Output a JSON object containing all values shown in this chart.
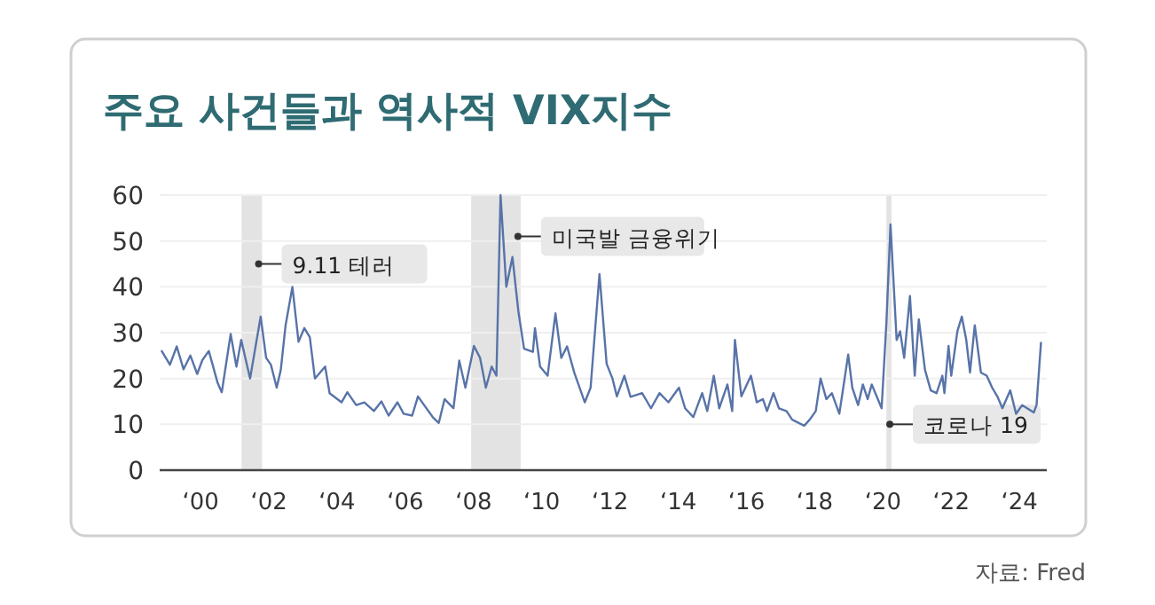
{
  "chart_data": {
    "type": "line",
    "title": "주요 사건들과 역사적 VIX지수",
    "series": [
      {
        "color": "#5873a8",
        "x": [
          -1.14,
          -0.9,
          -0.7,
          -0.5,
          -0.3,
          -0.1,
          0.05,
          0.24,
          0.5,
          0.62,
          0.88,
          1.05,
          1.19,
          1.45,
          1.76,
          1.92,
          2.06,
          2.23,
          2.35,
          2.49,
          2.69,
          2.87,
          3.04,
          3.2,
          3.35,
          3.65,
          3.78,
          4.13,
          4.3,
          4.56,
          4.8,
          5.08,
          5.3,
          5.51,
          5.77,
          5.95,
          6.2,
          6.37,
          6.55,
          6.8,
          6.98,
          7.15,
          7.41,
          7.58,
          7.76,
          8.01,
          8.19,
          8.36,
          8.53,
          8.67,
          8.79,
          8.96,
          9.14,
          9.31,
          9.48,
          9.74,
          9.8,
          9.95,
          10.17,
          10.4,
          10.57,
          10.74,
          10.95,
          11.26,
          11.43,
          11.69,
          11.9,
          12.07,
          12.2,
          12.42,
          12.6,
          12.94,
          13.2,
          13.45,
          13.71,
          14.02,
          14.2,
          14.44,
          14.7,
          14.85,
          15.04,
          15.2,
          15.44,
          15.58,
          15.66,
          15.85,
          16.13,
          16.3,
          16.48,
          16.6,
          16.79,
          16.95,
          17.17,
          17.34,
          17.69,
          17.85,
          18.03,
          18.17,
          18.34,
          18.5,
          18.72,
          18.98,
          19.1,
          19.27,
          19.41,
          19.55,
          19.67,
          19.96,
          20.1,
          20.22,
          20.4,
          20.5,
          20.62,
          20.79,
          20.93,
          21.05,
          21.23,
          21.4,
          21.57,
          21.74,
          21.8,
          21.92,
          22.0,
          22.18,
          22.31,
          22.44,
          22.55,
          22.69,
          22.87,
          23.04,
          23.2,
          23.35,
          23.5,
          23.73,
          23.9,
          24.08,
          24.42,
          24.5,
          24.63
        ],
        "values": [
          26,
          23,
          27,
          22,
          25,
          21,
          24,
          26,
          19,
          17,
          29.7,
          22.6,
          28.4,
          20,
          33.5,
          24.5,
          23,
          18,
          21.9,
          31.6,
          40,
          28,
          31,
          29,
          20,
          22.6,
          16.8,
          14.8,
          17,
          14.2,
          14.8,
          12.9,
          15,
          11.9,
          14.8,
          12.3,
          11.9,
          16.1,
          14.2,
          11.6,
          10.3,
          15.5,
          13.5,
          23.9,
          18,
          27.1,
          24.5,
          18,
          22.6,
          20.6,
          60,
          40,
          46.5,
          34.8,
          26.5,
          25.8,
          31,
          22.6,
          20.6,
          34.2,
          24.5,
          27,
          21.3,
          14.8,
          18,
          42.8,
          23.2,
          20,
          16.1,
          20.6,
          16,
          16.8,
          13.5,
          16.8,
          14.8,
          18,
          13.5,
          11.6,
          16.8,
          12.9,
          20.6,
          13.5,
          18.7,
          12.9,
          28.4,
          16.1,
          20.6,
          14.8,
          15.5,
          12.9,
          16.8,
          13.5,
          12.9,
          11,
          9.7,
          11,
          12.9,
          20,
          15.5,
          16.8,
          12.3,
          25.2,
          18,
          14.2,
          18.7,
          15.5,
          18.7,
          13.5,
          32.3,
          53.6,
          28.4,
          30.3,
          24.5,
          38,
          20.6,
          32.9,
          21.9,
          17.4,
          16.8,
          20.6,
          16.8,
          27.1,
          20.6,
          30.3,
          33.5,
          28.4,
          21.3,
          31.6,
          21.3,
          20.6,
          18,
          16.1,
          13.5,
          17.4,
          12.3,
          14.2,
          12.6,
          14.2,
          27.8
        ]
      }
    ],
    "xlim": [
      -1.2,
      24.8
    ],
    "xticks": [
      {
        "value": 0,
        "label": "‘00"
      },
      {
        "value": 2,
        "label": "‘02"
      },
      {
        "value": 4,
        "label": "‘04"
      },
      {
        "value": 6,
        "label": "‘06"
      },
      {
        "value": 8,
        "label": "‘08"
      },
      {
        "value": 10,
        "label": "‘10"
      },
      {
        "value": 12,
        "label": "‘12"
      },
      {
        "value": 14,
        "label": "‘14"
      },
      {
        "value": 16,
        "label": "‘16"
      },
      {
        "value": 18,
        "label": "‘18"
      },
      {
        "value": 20,
        "label": "‘20"
      },
      {
        "value": 22,
        "label": "‘22"
      },
      {
        "value": 24,
        "label": "‘24"
      }
    ],
    "ylim": [
      0,
      60
    ],
    "yticks": [
      0,
      10,
      20,
      30,
      40,
      50,
      60
    ],
    "grid": "y",
    "marker": "none",
    "line_style": "solid",
    "bands": [
      {
        "axis": "x",
        "from": 1.2,
        "to": 1.8,
        "color": "#e3e3e3"
      },
      {
        "axis": "x",
        "from": 7.93,
        "to": 9.38,
        "color": "#e3e3e3"
      },
      {
        "axis": "x",
        "from": 20.1,
        "to": 20.25,
        "color": "#e3e3e3"
      }
    ],
    "annotations": [
      {
        "text": "9.11 테러",
        "x": 1.7,
        "y": 45
      },
      {
        "text": "미국발 금융위기",
        "x": 9.3,
        "y": 51
      },
      {
        "text": "코로나 19",
        "x": 20.2,
        "y": 10
      },
      "자료: Fred"
    ]
  }
}
